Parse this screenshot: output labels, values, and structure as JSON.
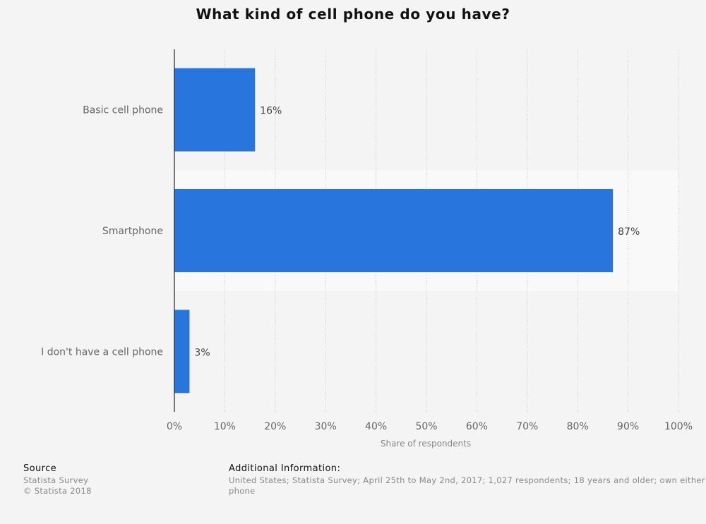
{
  "chart_data": {
    "type": "bar",
    "orientation": "horizontal",
    "title": "What kind of cell phone do you have?",
    "categories": [
      "Basic cell phone",
      "Smartphone",
      "I don't have a cell phone"
    ],
    "values": [
      16,
      87,
      3
    ],
    "value_labels": [
      "16%",
      "87%",
      "3%"
    ],
    "xlabel": "Share of respondents",
    "ylabel": "",
    "xlim": [
      0,
      100
    ],
    "xticks": [
      "0%",
      "10%",
      "20%",
      "30%",
      "40%",
      "50%",
      "60%",
      "70%",
      "80%",
      "90%",
      "100%"
    ],
    "grid": true,
    "bar_color": "#2876dd"
  },
  "footer": {
    "source_heading": "Source",
    "source_lines": [
      "Statista Survey",
      "© Statista 2018"
    ],
    "info_heading": "Additional Information:",
    "info_lines": [
      "United States; Statista Survey; April 25th to May 2nd, 2017; 1,027 respondents; 18 years and older; own either",
      "phone"
    ]
  }
}
